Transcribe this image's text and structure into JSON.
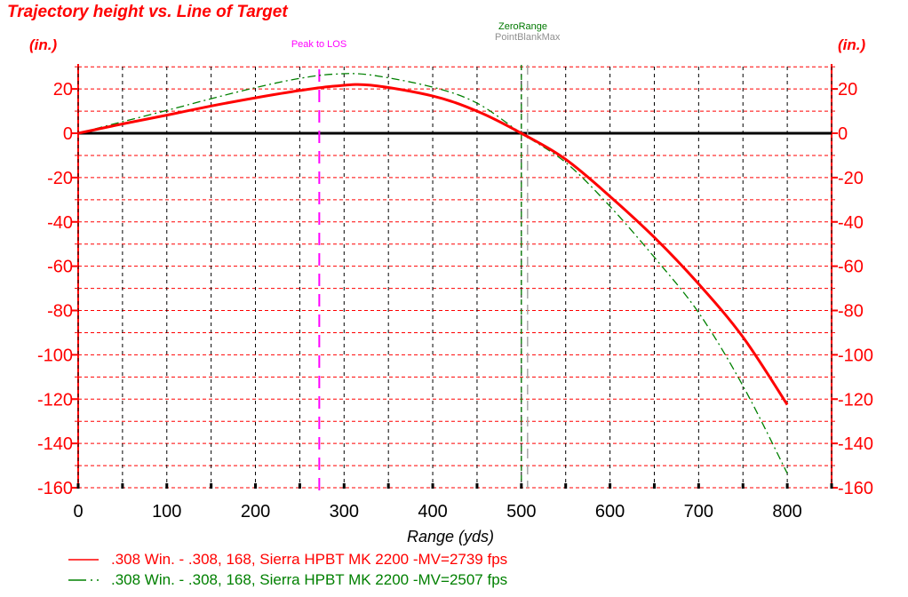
{
  "title": "Trajectory height vs. Line of Target",
  "axes": {
    "y_unit_left": "(in.)",
    "y_unit_right": "(in.)",
    "x_title": "Range (yds)"
  },
  "chart_data": {
    "type": "line",
    "title": "Trajectory height vs. Line of Target",
    "xlabel": "Range (yds)",
    "ylabel": "(in.)",
    "xlim": [
      0,
      850
    ],
    "ylim": [
      -160,
      32
    ],
    "x_tick_labels": [
      0,
      100,
      200,
      300,
      400,
      500,
      600,
      700,
      800
    ],
    "x_grid_step": 50,
    "y_tick_labels": [
      20,
      0,
      -20,
      -40,
      -60,
      -80,
      -100,
      -120,
      -140,
      -160
    ],
    "y_grid_step": 10,
    "grid": {
      "h_color": "#ff0000",
      "v_color": "#000000"
    },
    "axis_color": "#ff0000",
    "zero_line_color": "#000000",
    "series": [
      {
        "name": ".308 Win. - .308, 168, Sierra HPBT MK 2200 -MV=2739 fps",
        "color": "#ff0000",
        "style": "solid",
        "width": 3,
        "points": [
          [
            0,
            0
          ],
          [
            50,
            4.2
          ],
          [
            100,
            8.2
          ],
          [
            150,
            12.3
          ],
          [
            200,
            16.0
          ],
          [
            250,
            19.3
          ],
          [
            290,
            21.3
          ],
          [
            330,
            21.7
          ],
          [
            400,
            16.8
          ],
          [
            450,
            10.0
          ],
          [
            500,
            0
          ],
          [
            550,
            -11.8
          ],
          [
            600,
            -28.5
          ],
          [
            650,
            -47
          ],
          [
            700,
            -68
          ],
          [
            750,
            -92
          ],
          [
            800,
            -122.5
          ]
        ]
      },
      {
        "name": ".308 Win. - .308, 168, Sierra HPBT MK 2200 -MV=2507 fps",
        "color": "#008000",
        "style": "dash-dot",
        "width": 1.3,
        "points": [
          [
            0,
            0
          ],
          [
            50,
            5.2
          ],
          [
            100,
            10.3
          ],
          [
            150,
            15.6
          ],
          [
            200,
            20.6
          ],
          [
            250,
            24.8
          ],
          [
            290,
            26.7
          ],
          [
            330,
            26.3
          ],
          [
            400,
            20.8
          ],
          [
            450,
            13.6
          ],
          [
            500,
            0
          ],
          [
            550,
            -13.2
          ],
          [
            600,
            -33
          ],
          [
            650,
            -56
          ],
          [
            700,
            -81
          ],
          [
            750,
            -114
          ],
          [
            800,
            -153.5
          ]
        ]
      }
    ],
    "reference_lines": [
      {
        "label": "Peak to LOS",
        "x_yds": 272,
        "color": "#ff00ff",
        "dash": "14 9",
        "width": 2
      },
      {
        "label": "ZeroRange",
        "x_yds": 500,
        "color": "#007800",
        "dash": "6 5",
        "width": 1.3
      },
      {
        "label": "PointBlankMax",
        "x_yds": 507,
        "color": "#a8a8a8",
        "dash": "11 7",
        "width": 1.5
      }
    ]
  }
}
